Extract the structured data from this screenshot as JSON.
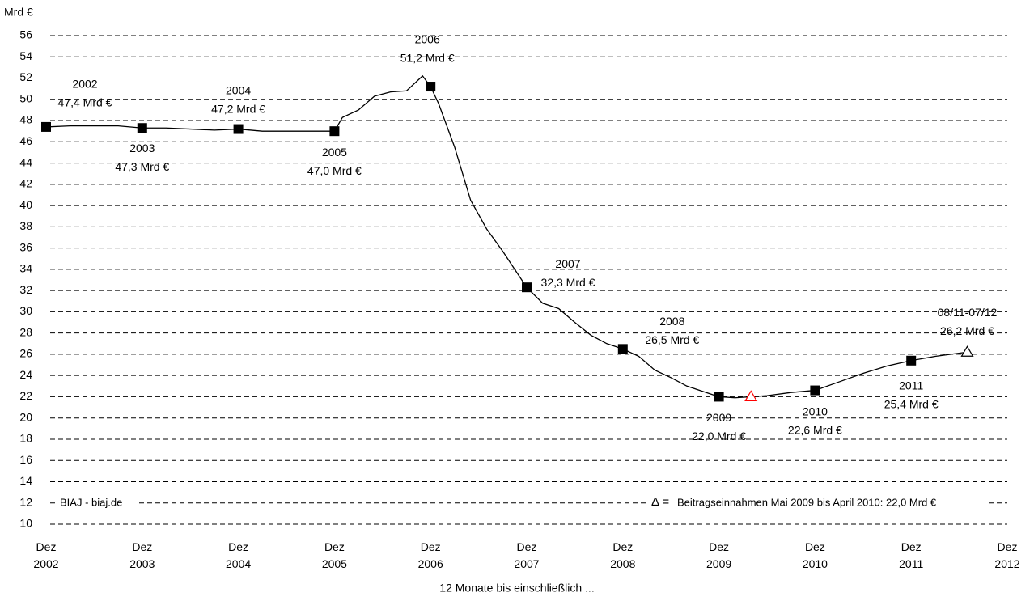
{
  "chart_data": {
    "type": "line",
    "y_axis_label": "Mrd €",
    "x_axis_label": "12 Monate bis einschließlich ...",
    "source": "BIAJ - biaj.de",
    "note_symbol": "Δ =",
    "note": "Beitragseinnahmen Mai 2009 bis April 2010: 22,0 Mrd €",
    "color": "#000000",
    "note_color": "#ff0000",
    "grid": true,
    "ylim": [
      10,
      56
    ],
    "yticks": [
      10,
      12,
      14,
      16,
      18,
      20,
      22,
      24,
      26,
      28,
      30,
      32,
      34,
      36,
      38,
      40,
      42,
      44,
      46,
      48,
      50,
      52,
      54,
      56
    ],
    "xlim": [
      "2002-12",
      "2012-12"
    ],
    "xticks": [
      {
        "value": "2002-12",
        "label": "Dez\n2002"
      },
      {
        "value": "2003-12",
        "label": "Dez\n2003"
      },
      {
        "value": "2004-12",
        "label": "Dez\n2004"
      },
      {
        "value": "2005-12",
        "label": "Dez\n2005"
      },
      {
        "value": "2006-12",
        "label": "Dez\n2006"
      },
      {
        "value": "2007-12",
        "label": "Dez\n2007"
      },
      {
        "value": "2008-12",
        "label": "Dez\n2008"
      },
      {
        "value": "2009-12",
        "label": "Dez\n2009"
      },
      {
        "value": "2010-12",
        "label": "Dez\n2010"
      },
      {
        "value": "2011-12",
        "label": "Dez\n2011"
      },
      {
        "value": "2012-12",
        "label": "Dez\n2012"
      }
    ],
    "x": [
      "2002-12",
      "2003-03",
      "2003-06",
      "2003-09",
      "2003-12",
      "2004-03",
      "2004-06",
      "2004-09",
      "2004-12",
      "2005-03",
      "2005-06",
      "2005-09",
      "2005-12",
      "2006-01",
      "2006-03",
      "2006-05",
      "2006-07",
      "2006-09",
      "2006-11",
      "2006-12",
      "2007-01",
      "2007-03",
      "2007-05",
      "2007-07",
      "2007-09",
      "2007-12",
      "2008-02",
      "2008-04",
      "2008-06",
      "2008-08",
      "2008-10",
      "2008-12",
      "2009-02",
      "2009-04",
      "2009-06",
      "2009-08",
      "2009-10",
      "2009-12",
      "2010-02",
      "2010-04",
      "2010-06",
      "2010-09",
      "2010-12",
      "2011-03",
      "2011-06",
      "2011-09",
      "2011-12",
      "2012-03",
      "2012-07"
    ],
    "values": [
      47.4,
      47.5,
      47.5,
      47.5,
      47.3,
      47.3,
      47.2,
      47.1,
      47.2,
      47.0,
      47.0,
      47.0,
      47.0,
      48.3,
      49.0,
      50.3,
      50.7,
      50.8,
      52.2,
      51.2,
      49.6,
      45.5,
      40.5,
      37.8,
      35.7,
      32.3,
      30.8,
      30.3,
      29.0,
      27.8,
      27.0,
      26.5,
      25.8,
      24.5,
      23.8,
      23.0,
      22.5,
      22.0,
      21.9,
      22.0,
      22.1,
      22.4,
      22.6,
      23.4,
      24.2,
      24.9,
      25.4,
      25.8,
      26.2
    ],
    "points": {
      "x": [
        "2002-12",
        "2003-12",
        "2004-12",
        "2005-12",
        "2006-12",
        "2007-12",
        "2008-12",
        "2009-12",
        "2010-12",
        "2011-12"
      ],
      "values": [
        47.4,
        47.3,
        47.2,
        47.0,
        51.2,
        32.3,
        26.5,
        22.0,
        22.6,
        25.4
      ],
      "labels": [
        "2002",
        "2003",
        "2004",
        "2005",
        "2006",
        "2007",
        "2008",
        "2009",
        "2010",
        "2011"
      ],
      "value_labels": [
        "47,4 Mrd €",
        "47,3 Mrd €",
        "47,2 Mrd €",
        "47,0 Mrd €",
        "51,2 Mrd €",
        "32,3 Mrd €",
        "26,5 Mrd €",
        "22,0 Mrd €",
        "22,6 Mrd €",
        "25,4 Mrd €"
      ]
    },
    "end_point": {
      "x": "2012-07",
      "value": 26.2,
      "label": "08/11-07/12",
      "value_label": "26,2 Mrd €"
    },
    "note_point": {
      "x": "2010-04",
      "value": 22.0
    }
  }
}
